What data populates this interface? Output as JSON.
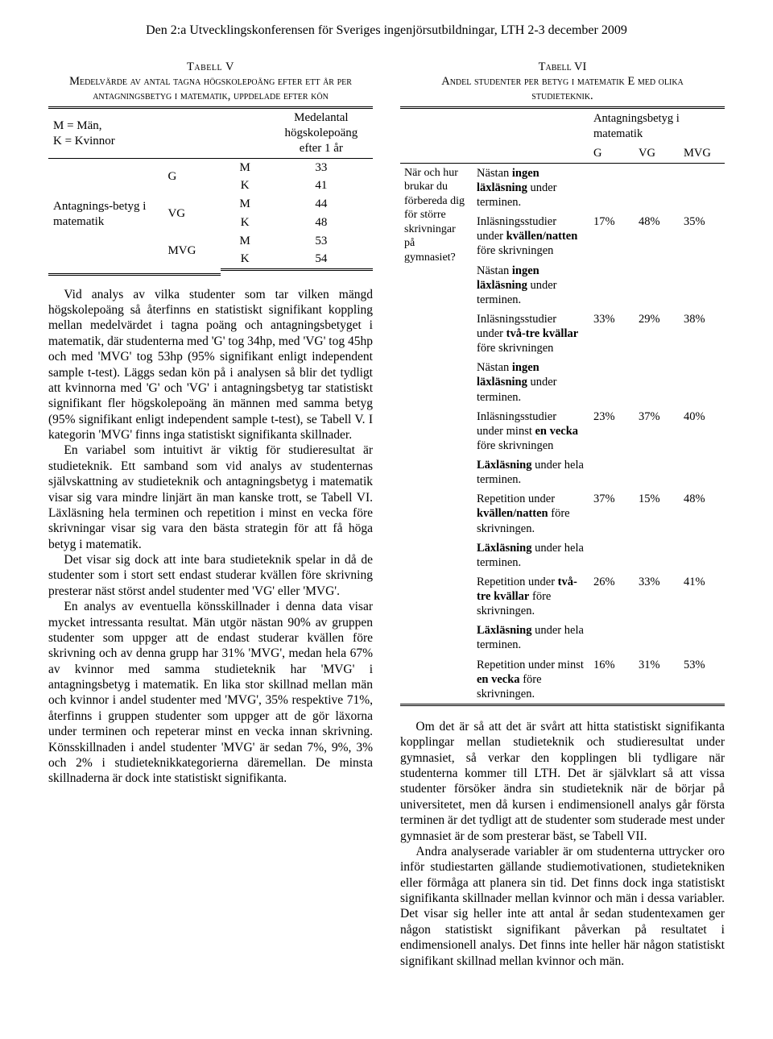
{
  "header": "Den 2:a Utvecklingskonferensen för Sveriges ingenjörsutbildningar, LTH 2-3 december 2009",
  "table5": {
    "label": "Tabell V",
    "caption_line1": "Medelvärde av antal tagna högskolepoäng efter ett år per",
    "caption_line2": "antagningsbetyg i matematik, uppdelade efter kön",
    "legend": "M = Män,\nK = Kvinnor",
    "col_header": "Medelantal högskolepoäng efter 1 år",
    "row_label": "Antagnings-betyg i matematik",
    "rows": [
      {
        "grade": "G",
        "mk": "M",
        "val": "33"
      },
      {
        "grade": "",
        "mk": "K",
        "val": "41"
      },
      {
        "grade": "VG",
        "mk": "M",
        "val": "44"
      },
      {
        "grade": "",
        "mk": "K",
        "val": "48"
      },
      {
        "grade": "MVG",
        "mk": "M",
        "val": "53"
      },
      {
        "grade": "",
        "mk": "K",
        "val": "54"
      }
    ]
  },
  "left_paragraphs": {
    "p1": "Vid analys av vilka studenter som tar vilken mängd högskolepoäng så återfinns en statistiskt signifikant koppling mellan medelvärdet i tagna poäng och antagningsbetyget i matematik, där studenterna med 'G' tog 34hp, med 'VG' tog 45hp och med 'MVG' tog 53hp (95% signifikant enligt independent sample t-test). Läggs sedan kön på i analysen så blir det tydligt att kvinnorna med 'G' och 'VG' i antagningsbetyg tar statistiskt signifikant fler högskolepoäng än männen med samma betyg (95% signifikant enligt independent sample t-test), se Tabell V. I kategorin 'MVG' finns inga statistiskt signifikanta skillnader.",
    "p2": "En variabel som intuitivt är viktig för studieresultat är studieteknik. Ett samband som vid analys av studenternas självskattning av studieteknik och antagningsbetyg i matematik visar sig vara mindre linjärt än man kanske trott, se Tabell VI. Läxläsning hela terminen och repetition i minst en vecka före skrivningar visar sig vara den bästa strategin för att få höga betyg i matematik.",
    "p3": "Det visar sig dock att inte bara studieteknik spelar in då de studenter som i stort sett endast studerar kvällen före skrivning presterar näst störst andel studenter med 'VG' eller 'MVG'.",
    "p4": "En analys av eventuella könsskillnader i denna data visar mycket intressanta resultat. Män utgör nästan 90% av gruppen studenter som uppger att de endast studerar kvällen före skrivning och av denna grupp har 31% 'MVG', medan hela 67% av kvinnor med samma studieteknik har 'MVG' i antagningsbetyg i matematik. En lika stor skillnad mellan män och kvinnor i andel studenter med 'MVG', 35% respektive 71%, återfinns i gruppen studenter som uppger att de gör läxorna under terminen och repeterar minst en vecka innan skrivning.  Könsskillnaden i andel studenter 'MVG' är sedan 7%, 9%, 3% och 2% i studieteknikkategorierna däremellan. De minsta skillnaderna är dock inte statistiskt signifikanta."
  },
  "table6": {
    "label": "Tabell VI",
    "caption_line1": "Andel studenter per betyg i matematik E med olika",
    "caption_line2": "studieteknik.",
    "span_header": "Antagningsbetyg i matematik",
    "cols": [
      "G",
      "VG",
      "MVG"
    ],
    "row_label": "När och hur brukar du förbereda dig för större skrivningar på gymnasiet?",
    "blocks": [
      {
        "lead": [
          "Nästan ",
          "ingen läxläsning",
          " under terminen."
        ],
        "main": [
          "Inläsningsstudier under ",
          "kvällen/natten",
          " före skrivningen"
        ],
        "pct": [
          "17%",
          "48%",
          "35%"
        ]
      },
      {
        "lead": [
          "Nästan ",
          "ingen läxläsning",
          " under terminen."
        ],
        "main": [
          "Inläsningsstudier under ",
          "två-tre kvällar",
          " före skrivningen"
        ],
        "pct": [
          "33%",
          "29%",
          "38%"
        ]
      },
      {
        "lead": [
          "Nästan ",
          "ingen läxläsning",
          " under terminen."
        ],
        "main": [
          "Inläsningsstudier under minst ",
          "en vecka",
          " före skrivningen"
        ],
        "pct": [
          "23%",
          "37%",
          "40%"
        ]
      },
      {
        "lead": [
          "",
          "Läxläsning",
          " under hela terminen."
        ],
        "main": [
          "Repetition under ",
          "kvällen/natten",
          " före skrivningen."
        ],
        "pct": [
          "37%",
          "15%",
          "48%"
        ]
      },
      {
        "lead": [
          "",
          "Läxläsning",
          " under hela terminen."
        ],
        "main": [
          "Repetition under ",
          "två-tre kvällar",
          " före skrivningen."
        ],
        "pct": [
          "26%",
          "33%",
          "41%"
        ]
      },
      {
        "lead": [
          "",
          "Läxläsning",
          " under hela terminen."
        ],
        "main": [
          "Repetition under minst ",
          "en vecka",
          " före skrivningen."
        ],
        "pct": [
          "16%",
          "31%",
          "53%"
        ]
      }
    ]
  },
  "right_paragraphs": {
    "p1": "Om det är så att det är svårt att hitta statistiskt signifikanta kopplingar mellan studieteknik och studieresultat under gymnasiet, så verkar den kopplingen bli tydligare när studenterna kommer till LTH. Det är självklart så att vissa studenter försöker ändra sin studieteknik när de börjar på universitetet, men då kursen i endimensionell analys går första terminen är det tydligt att de studenter som studerade mest under gymnasiet är de som presterar bäst, se Tabell VII.",
    "p2": "Andra analyserade variabler är om studenterna uttrycker oro inför studiestarten gällande studiemotivationen, studietekniken eller förmåga att planera sin tid. Det finns dock inga statistiskt signifikanta skillnader mellan kvinnor och män i dessa variabler.  Det visar sig heller inte att antal år sedan studentexamen ger någon statistiskt signifikant påverkan på resultatet i endimensionell analys.  Det finns inte heller här någon statistiskt signifikant skillnad mellan kvinnor och män."
  }
}
